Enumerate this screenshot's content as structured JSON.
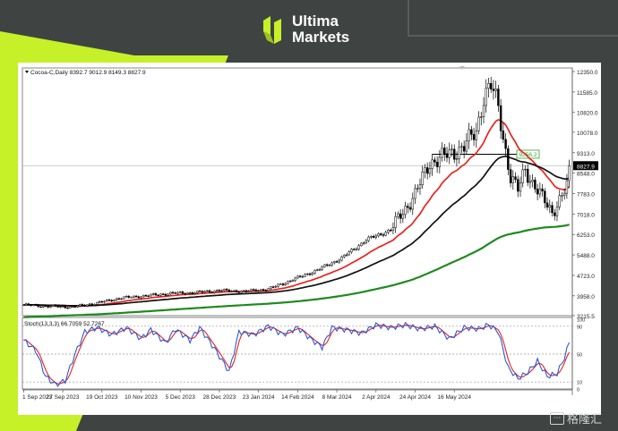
{
  "brand": {
    "line1": "Ultima",
    "line2": "Markets",
    "logo_icon": "ultima-markets-logo-icon",
    "accent_color": "#c6f028"
  },
  "watermark": {
    "icon": "chat-bubble-icon",
    "text": "格隆汇"
  },
  "chart_data": {
    "type": "candlestick",
    "symbol_header": "Cocoa-C,Daily  8392.7 9012.9 8149.3 8827.9",
    "price_ticks": [
      "12350.0",
      "11585.0",
      "10820.0",
      "10078.0",
      "9313.0",
      "8548.0",
      "7783.0",
      "7018.0",
      "6253.0",
      "5488.0",
      "4723.0",
      "3958.0",
      "3215.5"
    ],
    "price_range": [
      3215.5,
      12350.0
    ],
    "last_price_label": "8827.9",
    "resistance": {
      "value": 9256.2,
      "label": "9256.2",
      "color": "#2ea02e"
    },
    "x_labels": [
      "1 Sep 2023",
      "27 Sep 2023",
      "19 Oct 2023",
      "10 Nov 2023",
      "5 Dec 2023",
      "28 Dec 2023",
      "23 Jan 2024",
      "14 Feb 2024",
      "8 Mar 2024",
      "2 Apr 2024",
      "24 Apr 2024",
      "16 May 2024"
    ],
    "bars_per_label": 16,
    "close_anchors": [
      [
        0,
        3620
      ],
      [
        10,
        3560
      ],
      [
        20,
        3540
      ],
      [
        30,
        3690
      ],
      [
        40,
        3880
      ],
      [
        50,
        3960
      ],
      [
        60,
        4050
      ],
      [
        70,
        4080
      ],
      [
        80,
        4160
      ],
      [
        90,
        4120
      ],
      [
        100,
        4210
      ],
      [
        110,
        4560
      ],
      [
        120,
        4920
      ],
      [
        130,
        5370
      ],
      [
        140,
        6050
      ],
      [
        150,
        6420
      ],
      [
        155,
        7100
      ],
      [
        160,
        7750
      ],
      [
        166,
        8950
      ],
      [
        170,
        9100
      ],
      [
        175,
        9300
      ],
      [
        180,
        9550
      ],
      [
        185,
        10100
      ],
      [
        188,
        11450
      ],
      [
        191,
        11800
      ],
      [
        194,
        11000
      ],
      [
        196,
        9900
      ],
      [
        199,
        8400
      ],
      [
        202,
        7900
      ],
      [
        205,
        8700
      ],
      [
        208,
        8200
      ],
      [
        212,
        7600
      ],
      [
        216,
        7100
      ],
      [
        220,
        7700
      ],
      [
        222,
        8050
      ],
      [
        223,
        8827.9
      ]
    ],
    "overlays": [
      {
        "name": "EMA fast",
        "color": "#e8231e",
        "period": 20
      },
      {
        "name": "EMA mid",
        "color": "#111111",
        "period": 50
      },
      {
        "name": "EMA slow",
        "color": "#1f8a1f",
        "period": 200
      }
    ],
    "stochastic": {
      "header": "Stoch(13,3,3) 66.7059 52.7267",
      "k_value": 66.7059,
      "d_value": 52.7267,
      "k_color": "#2a59d8",
      "d_color": "#e8231e",
      "levels": [
        90,
        50,
        10
      ],
      "ticks": [
        "100",
        "90",
        "50",
        "10",
        "0"
      ],
      "range": [
        0,
        100
      ],
      "k_anchors": [
        [
          0,
          70
        ],
        [
          5,
          55
        ],
        [
          9,
          18
        ],
        [
          13,
          6
        ],
        [
          17,
          12
        ],
        [
          21,
          50
        ],
        [
          25,
          82
        ],
        [
          30,
          88
        ],
        [
          36,
          78
        ],
        [
          42,
          88
        ],
        [
          48,
          72
        ],
        [
          52,
          85
        ],
        [
          58,
          66
        ],
        [
          62,
          86
        ],
        [
          68,
          70
        ],
        [
          72,
          88
        ],
        [
          78,
          58
        ],
        [
          84,
          25
        ],
        [
          88,
          82
        ],
        [
          94,
          78
        ],
        [
          100,
          90
        ],
        [
          106,
          78
        ],
        [
          112,
          88
        ],
        [
          118,
          70
        ],
        [
          122,
          60
        ],
        [
          126,
          88
        ],
        [
          132,
          85
        ],
        [
          138,
          80
        ],
        [
          144,
          92
        ],
        [
          150,
          88
        ],
        [
          156,
          92
        ],
        [
          162,
          86
        ],
        [
          168,
          90
        ],
        [
          174,
          72
        ],
        [
          180,
          88
        ],
        [
          186,
          86
        ],
        [
          190,
          92
        ],
        [
          194,
          82
        ],
        [
          198,
          30
        ],
        [
          202,
          15
        ],
        [
          206,
          24
        ],
        [
          210,
          40
        ],
        [
          214,
          18
        ],
        [
          218,
          22
        ],
        [
          221,
          45
        ],
        [
          223,
          66.7
        ]
      ]
    }
  }
}
